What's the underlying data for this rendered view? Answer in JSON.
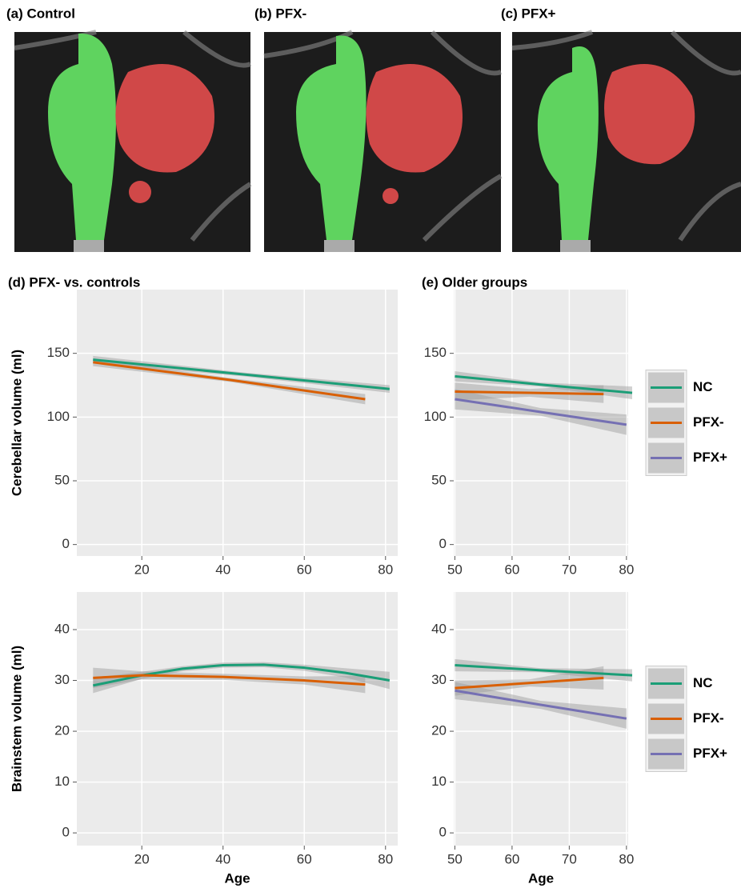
{
  "images": [
    {
      "label": "(a) Control"
    },
    {
      "label": "(b) PFX-"
    },
    {
      "label": "(c) PFX+"
    }
  ],
  "chart_data": [
    {
      "type": "line",
      "title": "(d) PFX- vs. controls",
      "ylabel": "Cerebellar volume (ml)",
      "xlim": [
        4,
        83
      ],
      "ylim": [
        -9,
        200
      ],
      "xticks": [
        20,
        40,
        60,
        80
      ],
      "yticks": [
        0,
        50,
        100,
        150
      ],
      "grid": true,
      "series": [
        {
          "name": "NC",
          "color": "#1b9e77",
          "x": [
            8,
            45,
            81
          ],
          "values": [
            145,
            133.5,
            122
          ],
          "lower": [
            142,
            132,
            119
          ],
          "upper": [
            148,
            135,
            125
          ]
        },
        {
          "name": "PFX-",
          "color": "#d95f02",
          "x": [
            8,
            42,
            75
          ],
          "values": [
            143,
            129,
            114
          ],
          "lower": [
            140,
            127.5,
            110
          ],
          "upper": [
            146,
            130.5,
            118
          ]
        }
      ]
    },
    {
      "type": "line",
      "title": "(e) Older groups",
      "xlim": [
        49.8,
        80.3
      ],
      "ylim": [
        -9,
        200
      ],
      "xticks": [
        50,
        60,
        70,
        80
      ],
      "yticks": [
        0,
        50,
        100,
        150
      ],
      "grid": true,
      "legend": "right",
      "series": [
        {
          "name": "NC",
          "color": "#1b9e77",
          "x": [
            50,
            65,
            81
          ],
          "values": [
            132,
            125.5,
            119
          ],
          "lower": [
            128,
            124,
            114
          ],
          "upper": [
            136,
            127,
            124
          ]
        },
        {
          "name": "PFX-",
          "color": "#d95f02",
          "x": [
            50,
            63,
            76
          ],
          "values": [
            120,
            119,
            118
          ],
          "lower": [
            113,
            116,
            111
          ],
          "upper": [
            127,
            122,
            125
          ]
        },
        {
          "name": "PFX+",
          "color": "#7570b3",
          "x": [
            50,
            65,
            80
          ],
          "values": [
            114,
            104,
            94
          ],
          "lower": [
            106,
            101,
            86
          ],
          "upper": [
            122,
            107,
            102
          ]
        }
      ]
    },
    {
      "type": "line",
      "ylabel": "Brainstem volume (ml)",
      "xlabel": "Age",
      "xlim": [
        4,
        83
      ],
      "ylim": [
        -2.5,
        47.4
      ],
      "xticks": [
        20,
        40,
        60,
        80
      ],
      "yticks": [
        0,
        10,
        20,
        30,
        40
      ],
      "grid": true,
      "series": [
        {
          "name": "NC",
          "color": "#1b9e77",
          "x": [
            8,
            20,
            30,
            40,
            50,
            60,
            70,
            81
          ],
          "values": [
            29,
            31,
            32.3,
            33,
            33.1,
            32.5,
            31.5,
            30
          ],
          "lower": [
            27.5,
            30.3,
            31.8,
            32.5,
            32.6,
            31.9,
            30.6,
            28.3
          ],
          "upper": [
            30.5,
            31.7,
            32.8,
            33.5,
            33.6,
            33.1,
            32.4,
            31.7
          ]
        },
        {
          "name": "PFX-",
          "color": "#d95f02",
          "x": [
            8,
            20,
            40,
            60,
            75
          ],
          "values": [
            30.5,
            31,
            30.7,
            30,
            29.2
          ],
          "lower": [
            28.5,
            30.2,
            30.1,
            29.2,
            27.5
          ],
          "upper": [
            32.5,
            31.8,
            31.3,
            30.8,
            30.9
          ]
        }
      ]
    },
    {
      "type": "line",
      "xlabel": "Age",
      "xlim": [
        49.8,
        80.3
      ],
      "ylim": [
        -2.5,
        47.4
      ],
      "xticks": [
        50,
        60,
        70,
        80
      ],
      "yticks": [
        0,
        10,
        20,
        30,
        40
      ],
      "grid": true,
      "legend": "right",
      "series": [
        {
          "name": "NC",
          "color": "#1b9e77",
          "x": [
            50,
            65,
            81
          ],
          "values": [
            33,
            32,
            31
          ],
          "lower": [
            31.8,
            31.6,
            29.8
          ],
          "upper": [
            34.2,
            32.4,
            32.2
          ]
        },
        {
          "name": "PFX-",
          "color": "#d95f02",
          "x": [
            50,
            63,
            76
          ],
          "values": [
            28.5,
            29.5,
            30.5
          ],
          "lower": [
            27,
            28.8,
            28.2
          ],
          "upper": [
            30,
            30.2,
            32.8
          ]
        },
        {
          "name": "PFX+",
          "color": "#7570b3",
          "x": [
            50,
            65,
            80
          ],
          "values": [
            28,
            25.2,
            22.5
          ],
          "lower": [
            26.3,
            24.4,
            20.5
          ],
          "upper": [
            29.7,
            26,
            24.5
          ]
        }
      ]
    }
  ]
}
